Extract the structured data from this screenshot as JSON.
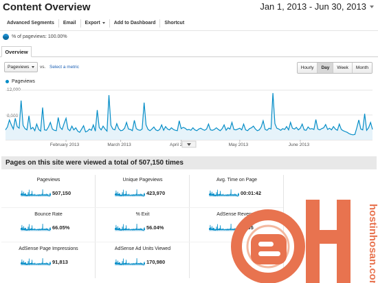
{
  "header": {
    "title": "Content Overview",
    "date_range": "Jan 1, 2013 - Jun 30, 2013"
  },
  "toolbar": {
    "advanced_segments": "Advanced Segments",
    "email": "Email",
    "export": "Export",
    "add_to_dashboard": "Add to Dashboard",
    "shortcut": "Shortcut"
  },
  "segment": {
    "label": "% of pageviews: 100.00%"
  },
  "tabs": {
    "overview": "Overview"
  },
  "controls": {
    "metric": "Pageviews",
    "vs": "vs.",
    "select_metric": "Select a metric",
    "periods": [
      "Hourly",
      "Day",
      "Week",
      "Month"
    ],
    "active_period": "Day"
  },
  "chart_data": {
    "type": "area",
    "series": [
      {
        "name": "Pageviews",
        "color": "#058dc7",
        "values": [
          2400,
          3100,
          4800,
          3600,
          2600,
          5200,
          3200,
          2800,
          9500,
          3500,
          2700,
          2400,
          5800,
          2600,
          3000,
          2200,
          3800,
          2500,
          2100,
          7800,
          2400,
          2300,
          3100,
          4200,
          2600,
          2300,
          2200,
          5400,
          3000,
          2500,
          3900,
          5200,
          2600,
          2200,
          3300,
          2400,
          2900,
          2100,
          1800,
          2600,
          3400,
          1900,
          2100,
          2600,
          2300,
          3600,
          2100,
          7200,
          3000,
          2400,
          3300,
          2600,
          2100,
          10800,
          3500,
          2600,
          2400,
          3900,
          2700,
          2200,
          2300,
          2800,
          4200,
          2600,
          2500,
          2200,
          4700,
          2700,
          2400,
          2300,
          2600,
          9000,
          3600,
          2500,
          2200,
          2600,
          3100,
          2400,
          2200,
          2500,
          3600,
          2300,
          3200,
          2600,
          2400,
          2900,
          2500,
          2300,
          2200,
          4600,
          2700,
          3000,
          2800,
          2400,
          2500,
          2300,
          2900,
          2400,
          2200,
          2600,
          2800,
          2500,
          2300,
          2600,
          3800,
          2400,
          2300,
          2500,
          2900,
          2500,
          2200,
          2700,
          3600,
          2300,
          2900,
          2600,
          4200,
          2500,
          2400,
          2600,
          2800,
          2400,
          3800,
          2400,
          2200,
          2700,
          2900,
          3300,
          2600,
          2200,
          2400,
          3100,
          4600,
          2500,
          2300,
          2800,
          2600,
          11300,
          3900,
          2800,
          2600,
          2300,
          2700,
          2500,
          3200,
          2400,
          4200,
          2800,
          2600,
          3000,
          2400,
          2800,
          3800,
          2400,
          2300,
          3100,
          2600,
          2700,
          2500,
          4900,
          2600,
          2400,
          2700,
          2900,
          3700,
          2500,
          2800,
          2400,
          3200,
          2600,
          2300,
          3800,
          2500,
          2200,
          2000,
          1800,
          1500,
          1300,
          1200,
          1300,
          3000,
          4800,
          2600,
          2400,
          6300,
          2300,
          2900,
          4200,
          2500
        ]
      }
    ],
    "x_labels": [
      "February 2013",
      "March 2013",
      "April 2013",
      "May 2013",
      "June 2013"
    ],
    "y_ticks": [
      "12,000",
      "6,000"
    ],
    "ylim": [
      0,
      12000
    ]
  },
  "summary": {
    "banner": "Pages on this site were viewed a total of 507,150 times"
  },
  "metrics": [
    {
      "label": "Pageviews",
      "value": "507,150"
    },
    {
      "label": "Unique Pageviews",
      "value": "423,970"
    },
    {
      "label": "Avg. Time on Page",
      "value": "00:01:42"
    },
    {
      "label": "Bounce Rate",
      "value": "66.05%"
    },
    {
      "label": "% Exit",
      "value": "56.04%"
    },
    {
      "label": "AdSense Revenue",
      "value": "$7.05"
    },
    {
      "label": "AdSense Page Impressions",
      "value": "91,813"
    },
    {
      "label": "AdSense Ad Units Viewed",
      "value": "170,980"
    }
  ],
  "watermark": {
    "text": "hostinhosan.com",
    "color": "#e8734f"
  }
}
